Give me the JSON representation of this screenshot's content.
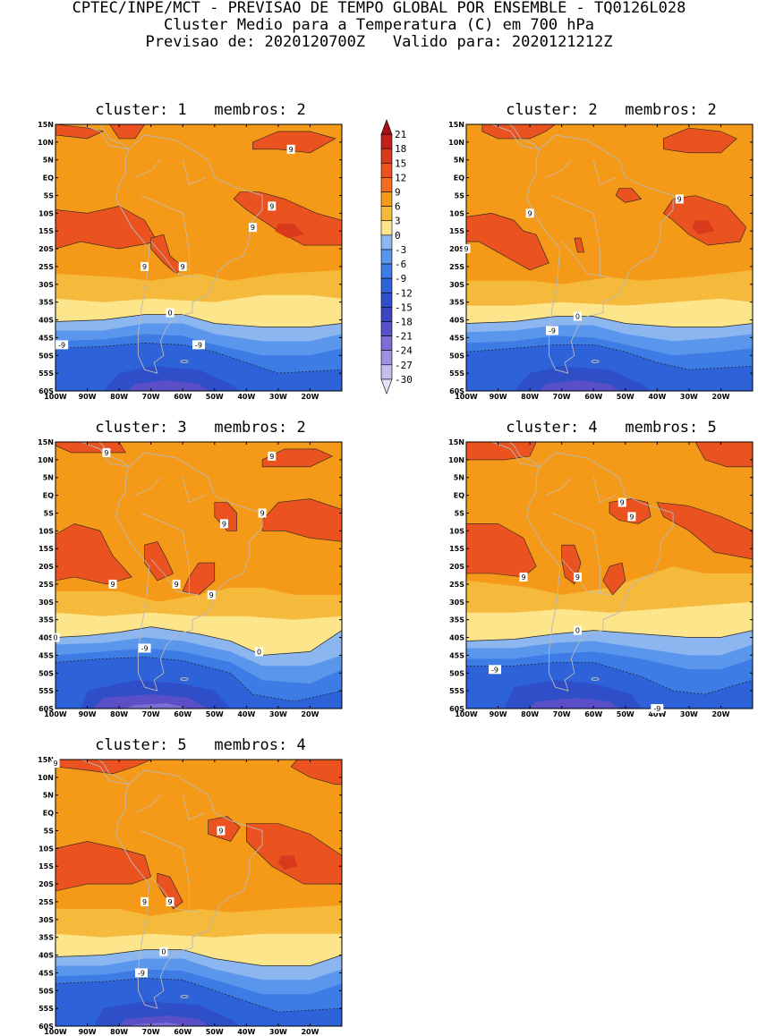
{
  "header": {
    "line1": "CPTEC/INPE/MCT - PREVISAO DE TEMPO GLOBAL POR ENSEMBLE - TQ0126L028",
    "line2": "Cluster Medio para a Temperatura (C) em 700 hPa",
    "line3": "Previsao de: 2020120700Z   Valido para: 2020121212Z"
  },
  "axes": {
    "y_ticks": [
      "15N",
      "10N",
      "5N",
      "EQ",
      "5S",
      "10S",
      "15S",
      "20S",
      "25S",
      "30S",
      "35S",
      "40S",
      "45S",
      "50S",
      "55S",
      "60S"
    ],
    "x_ticks": [
      "100W",
      "90W",
      "80W",
      "70W",
      "60W",
      "50W",
      "40W",
      "30W",
      "20W"
    ]
  },
  "colorbar": {
    "labels": [
      "21",
      "18",
      "15",
      "12",
      "9",
      "6",
      "3",
      "0",
      "-3",
      "-6",
      "-9",
      "-12",
      "-15",
      "-18",
      "-21",
      "-24",
      "-27",
      "-30"
    ],
    "colors": [
      "#a50f15",
      "#c0211b",
      "#d93a1c",
      "#ea5320",
      "#f36e1e",
      "#f59a18",
      "#f5b93c",
      "#fde58c",
      "#8bb6f0",
      "#5a96ec",
      "#3c7ce4",
      "#2d62d8",
      "#2f4fc8",
      "#3d44c0",
      "#5a4fc6",
      "#7a6fd4",
      "#9c92e0",
      "#c4bdee",
      "#e4e0f8"
    ]
  },
  "panels": [
    {
      "title": "cluster: 1   membros: 2",
      "labels": [
        "9",
        "9",
        "9",
        "9",
        "9",
        "0",
        "-9",
        "-9"
      ]
    },
    {
      "title": "cluster: 2   membros: 2",
      "labels": [
        "9",
        "9",
        "9",
        "0",
        "-9"
      ]
    },
    {
      "title": "cluster: 3   membros: 2",
      "labels": [
        "9",
        "9",
        "9",
        "9",
        "9",
        "9",
        "9",
        "0",
        "0",
        "-9"
      ]
    },
    {
      "title": "cluster: 4   membros: 5",
      "labels": [
        "9",
        "9",
        "9",
        "9",
        "0",
        "-9",
        "-9"
      ]
    },
    {
      "title": "cluster: 5   membros: 4",
      "labels": [
        "9",
        "9",
        "9",
        "9",
        "0",
        "-9"
      ]
    }
  ]
}
